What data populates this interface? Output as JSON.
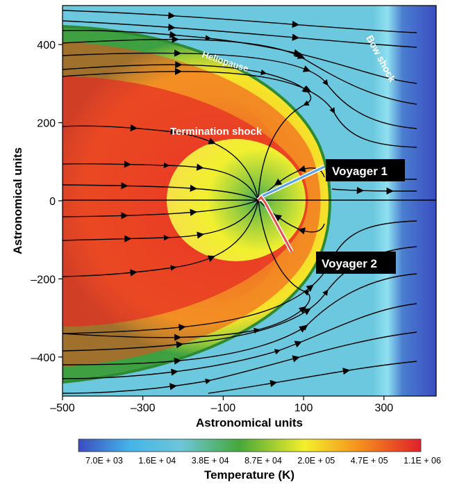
{
  "chart_data": {
    "type": "heatmap",
    "title": "",
    "xlabel": "Astronomical units",
    "ylabel": "Astronomical units",
    "xlim": [
      -500,
      430
    ],
    "ylim": [
      -500,
      500
    ],
    "x_ticks": [
      -500,
      -300,
      -100,
      100,
      300
    ],
    "x_tick_labels": [
      "–500",
      "–300",
      "–100",
      "100",
      "300"
    ],
    "y_ticks": [
      400,
      200,
      0,
      -200,
      -400
    ],
    "y_tick_labels": [
      "400",
      "200",
      "0",
      "–200",
      "–400"
    ],
    "colorbar": {
      "label": "Temperature (K)",
      "tick_labels": [
        "7.0E + 03",
        "1.6E + 04",
        "3.8E + 04",
        "8.7E + 04",
        "2.0E + 05",
        "4.7E + 05",
        "1.1E + 06"
      ],
      "values_K": [
        7000,
        16000,
        38000,
        87000,
        200000,
        470000,
        1100000
      ],
      "colors": [
        "#3a4cc0",
        "#45b4e8",
        "#6cc6d9",
        "#46a83a",
        "#f4ef2a",
        "#f58a1d",
        "#e0202a"
      ]
    },
    "boundaries": {
      "termination_shock": {
        "label": "Termination shock",
        "nose_x_au": 130,
        "tail_x_au": -230,
        "half_width_au": 175
      },
      "heliopause": {
        "label": "Heliopause",
        "nose_x_au": 170,
        "top_y_au": 450
      },
      "bow_shock": {
        "label": "Bow shock",
        "nose_x_au": 340
      }
    },
    "trajectories": [
      {
        "name": "Voyager 1",
        "color": "#58a2e8",
        "start": [
          0,
          0
        ],
        "end": [
          165,
          95
        ]
      },
      {
        "name": "Voyager 2",
        "color": "#e55050",
        "start": [
          0,
          0
        ],
        "end": [
          90,
          -140
        ]
      }
    ],
    "colors": {
      "hot": "#e0202a",
      "ambient": "#6cc6d9",
      "cold": "#3a4cc0"
    }
  }
}
